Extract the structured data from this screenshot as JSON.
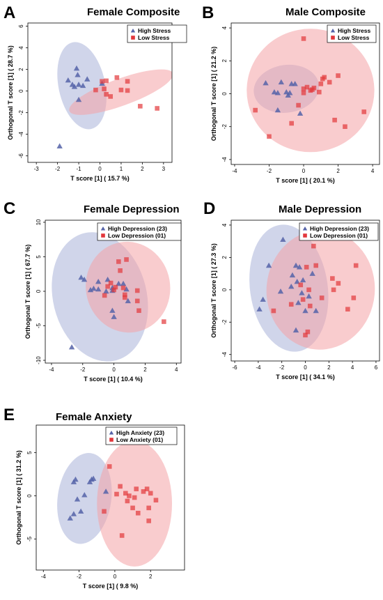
{
  "colors": {
    "high": "#5563a8",
    "low": "#e2373b",
    "high_ellipse": "#aab3d9",
    "low_ellipse": "#f4a3a6"
  },
  "chart_data": [
    {
      "letter": "A",
      "type": "scatter",
      "title": "Female Composite",
      "xlabel": "T score [1] ( 15.7 %)",
      "ylabel": "Orthogonal T score [1] ( 28.7 %)",
      "xlim": [
        -3.4,
        3.4
      ],
      "ylim": [
        -6.6,
        6.3
      ],
      "xticks": [
        -3,
        -2,
        -1,
        0,
        1,
        2,
        3
      ],
      "yticks": [
        -6,
        -4,
        -2,
        0,
        2,
        4,
        6
      ],
      "legend_position": "top-right",
      "series": [
        {
          "name": "High Stress",
          "group": "high",
          "points": [
            [
              -1.9,
              -5.1
            ],
            [
              -1.5,
              1.0
            ],
            [
              -1.3,
              0.6
            ],
            [
              -1.2,
              0.4
            ],
            [
              -1.1,
              2.1
            ],
            [
              -1.05,
              1.5
            ],
            [
              -1.0,
              0.6
            ],
            [
              -1.0,
              -0.8
            ],
            [
              -0.8,
              0.5
            ],
            [
              -0.6,
              1.1
            ],
            [
              0.1,
              0.7
            ]
          ]
        },
        {
          "name": "Low Stress",
          "group": "low",
          "points": [
            [
              -0.2,
              0.1
            ],
            [
              0.1,
              0.9
            ],
            [
              0.2,
              0.2
            ],
            [
              0.3,
              -0.3
            ],
            [
              0.3,
              0.95
            ],
            [
              0.5,
              -0.5
            ],
            [
              0.8,
              1.25
            ],
            [
              1.0,
              0.1
            ],
            [
              1.3,
              0.9
            ],
            [
              1.3,
              0.05
            ],
            [
              1.9,
              -1.4
            ],
            [
              2.7,
              -1.6
            ]
          ]
        }
      ],
      "ellipses": [
        {
          "group": "high",
          "cx": -0.85,
          "cy": 0.5,
          "rx": 1.1,
          "ry": 4.1,
          "angle": -12
        },
        {
          "group": "low",
          "cx": 1.0,
          "cy": -0.1,
          "rx": 2.6,
          "ry": 1.25,
          "angle": -20
        }
      ]
    },
    {
      "letter": "B",
      "type": "scatter",
      "title": "Male Composite",
      "xlabel": "T score [1] ( 20.1 %)",
      "ylabel": "Orthogonal T score [1] ( 21.2 %)",
      "xlim": [
        -4.2,
        4.4
      ],
      "ylim": [
        -4.3,
        4.3
      ],
      "xticks": [
        -4,
        -2,
        0,
        2,
        4
      ],
      "yticks": [
        -4,
        -2,
        0,
        2,
        4
      ],
      "legend_position": "top-right",
      "series": [
        {
          "name": "High Stress",
          "group": "high",
          "points": [
            [
              -2.2,
              0.65
            ],
            [
              -1.7,
              0.1
            ],
            [
              -1.5,
              0.05
            ],
            [
              -1.3,
              0.7
            ],
            [
              -1.0,
              0.1
            ],
            [
              -0.9,
              -0.1
            ],
            [
              -0.8,
              0.05
            ],
            [
              -0.7,
              0.6
            ],
            [
              -0.5,
              0.6
            ],
            [
              -1.5,
              -1.0
            ],
            [
              -0.2,
              -1.2
            ]
          ]
        },
        {
          "name": "Low Stress",
          "group": "low",
          "points": [
            [
              0.0,
              3.35
            ],
            [
              -2.8,
              -1.0
            ],
            [
              -2.0,
              -2.6
            ],
            [
              -0.7,
              -1.8
            ],
            [
              -0.3,
              -0.7
            ],
            [
              0.0,
              0.3
            ],
            [
              0.0,
              0.05
            ],
            [
              0.2,
              0.4
            ],
            [
              0.4,
              0.2
            ],
            [
              0.6,
              0.35
            ],
            [
              0.9,
              0.1
            ],
            [
              1.0,
              0.6
            ],
            [
              1.1,
              0.9
            ],
            [
              1.2,
              1.0
            ],
            [
              1.5,
              0.7
            ],
            [
              2.0,
              1.1
            ],
            [
              1.8,
              -1.6
            ],
            [
              2.4,
              -2.0
            ],
            [
              3.5,
              -1.1
            ],
            [
              0.5,
              0.25
            ]
          ]
        }
      ],
      "ellipses": [
        {
          "group": "high",
          "cx": -1.0,
          "cy": 0.3,
          "rx": 1.9,
          "ry": 1.45,
          "angle": -8
        },
        {
          "group": "low",
          "cx": 0.4,
          "cy": 0.2,
          "rx": 3.7,
          "ry": 3.75,
          "angle": 0
        }
      ]
    },
    {
      "letter": "C",
      "type": "scatter",
      "title": "Female Depression",
      "xlabel": "T score [1] ( 10.4 %)",
      "ylabel": "Orthogonal T score [1] ( 67.7 %)",
      "xlim": [
        -4.4,
        4.3
      ],
      "ylim": [
        -10.4,
        10.3
      ],
      "xticks": [
        -4,
        -2,
        0,
        2,
        4
      ],
      "yticks": [
        -10,
        -5,
        0,
        5,
        10
      ],
      "legend_position": "top-right",
      "series": [
        {
          "name": "High Depression (23)",
          "group": "high",
          "points": [
            [
              -2.7,
              -8.1
            ],
            [
              -2.1,
              2.0
            ],
            [
              -1.9,
              1.7
            ],
            [
              -1.5,
              0.2
            ],
            [
              -1.0,
              0.3
            ],
            [
              -1.0,
              1.4
            ],
            [
              -0.4,
              1.7
            ],
            [
              -0.1,
              0.5
            ],
            [
              -0.1,
              -2.8
            ],
            [
              0.0,
              -3.7
            ],
            [
              0.3,
              1.1
            ],
            [
              0.6,
              1.1
            ],
            [
              0.8,
              0.3
            ],
            [
              0.9,
              -1.4
            ],
            [
              -0.5,
              0.0
            ],
            [
              -1.3,
              0.4
            ],
            [
              -0.1,
              0.1
            ]
          ]
        },
        {
          "name": "Low Depression (01)",
          "group": "low",
          "points": [
            [
              -0.6,
              -0.6
            ],
            [
              -0.4,
              0.7
            ],
            [
              -0.2,
              1.2
            ],
            [
              0.0,
              0.2
            ],
            [
              0.1,
              0.6
            ],
            [
              0.3,
              4.3
            ],
            [
              0.4,
              3.0
            ],
            [
              0.6,
              0.5
            ],
            [
              0.7,
              -0.5
            ],
            [
              0.7,
              -0.9
            ],
            [
              0.8,
              4.6
            ],
            [
              1.5,
              0.1
            ],
            [
              1.5,
              -1.4
            ],
            [
              1.6,
              -2.8
            ],
            [
              3.2,
              -4.4
            ]
          ]
        }
      ],
      "ellipses": [
        {
          "group": "high",
          "cx": -0.9,
          "cy": -0.8,
          "rx": 3.0,
          "ry": 9.5,
          "angle": -14
        },
        {
          "group": "low",
          "cx": 0.9,
          "cy": 0.6,
          "rx": 2.7,
          "ry": 6.6,
          "angle": -10
        }
      ]
    },
    {
      "letter": "D",
      "type": "scatter",
      "title": "Male Depression",
      "xlabel": "T score [1] ( 34.1 %)",
      "ylabel": "Orthogonal T score [1] ( 27.3 %)",
      "xlim": [
        -6.3,
        6.3
      ],
      "ylim": [
        -4.4,
        4.3
      ],
      "xticks": [
        -6,
        -4,
        -2,
        0,
        2,
        4,
        6
      ],
      "yticks": [
        -4,
        -2,
        0,
        2,
        4
      ],
      "legend_position": "top-right",
      "series": [
        {
          "name": "High Depression (23)",
          "group": "high",
          "points": [
            [
              -3.9,
              -1.2
            ],
            [
              -3.6,
              -0.6
            ],
            [
              -3.1,
              1.5
            ],
            [
              -2.1,
              -0.1
            ],
            [
              -1.9,
              3.1
            ],
            [
              -1.2,
              0.2
            ],
            [
              -1.1,
              0.9
            ],
            [
              -0.8,
              1.5
            ],
            [
              -0.7,
              0.5
            ],
            [
              -0.6,
              -0.8
            ],
            [
              -0.5,
              1.4
            ],
            [
              -0.3,
              -0.2
            ],
            [
              -0.2,
              0.6
            ],
            [
              0.0,
              -1.3
            ],
            [
              0.6,
              1.0
            ],
            [
              0.9,
              -1.3
            ],
            [
              -0.8,
              -2.5
            ],
            [
              0.3,
              -0.4
            ]
          ]
        },
        {
          "name": "Low Depression (01)",
          "group": "low",
          "points": [
            [
              -2.7,
              -1.3
            ],
            [
              -1.2,
              -0.9
            ],
            [
              -0.2,
              -0.6
            ],
            [
              0.0,
              -2.8
            ],
            [
              0.1,
              1.4
            ],
            [
              0.2,
              -2.6
            ],
            [
              0.3,
              0.0
            ],
            [
              0.4,
              -1.0
            ],
            [
              0.7,
              2.7
            ],
            [
              0.9,
              1.5
            ],
            [
              1.4,
              -0.5
            ],
            [
              2.3,
              0.7
            ],
            [
              2.4,
              0.0
            ],
            [
              2.8,
              0.4
            ],
            [
              3.6,
              -1.2
            ],
            [
              4.1,
              -0.5
            ],
            [
              4.3,
              1.5
            ],
            [
              -0.4,
              0.3
            ]
          ]
        }
      ],
      "ellipses": [
        {
          "group": "high",
          "cx": -1.4,
          "cy": 0.1,
          "rx": 3.3,
          "ry": 3.95,
          "angle": -8
        },
        {
          "group": "low",
          "cx": 1.3,
          "cy": 0.0,
          "rx": 4.6,
          "ry": 3.7,
          "angle": 5
        }
      ]
    },
    {
      "letter": "E",
      "type": "scatter",
      "title": "Female Anxiety",
      "xlabel": "T score [1] ( 9.8 %)",
      "ylabel": "Orthogonal T score [1] ( 31.2 %)",
      "xlim": [
        -4.4,
        3.9
      ],
      "ylim": [
        -8.6,
        8.2
      ],
      "xticks": [
        -4,
        -2,
        0,
        2
      ],
      "yticks": [
        -5,
        0,
        5
      ],
      "legend_position": "top-right",
      "series": [
        {
          "name": "High Anxiety (23)",
          "group": "high",
          "points": [
            [
              -2.5,
              -2.6
            ],
            [
              -2.3,
              -2.1
            ],
            [
              -2.3,
              1.6
            ],
            [
              -2.2,
              1.9
            ],
            [
              -2.1,
              -0.4
            ],
            [
              -1.9,
              -1.8
            ],
            [
              -1.7,
              0.1
            ],
            [
              -1.4,
              1.6
            ],
            [
              -1.3,
              1.9
            ],
            [
              -1.2,
              2.0
            ],
            [
              -0.5,
              0.5
            ]
          ]
        },
        {
          "name": "Low Anxiety (01)",
          "group": "low",
          "points": [
            [
              -0.6,
              -1.8
            ],
            [
              -0.3,
              3.4
            ],
            [
              0.1,
              0.2
            ],
            [
              0.3,
              1.1
            ],
            [
              0.4,
              -4.6
            ],
            [
              0.6,
              0.3
            ],
            [
              0.7,
              -0.6
            ],
            [
              1.0,
              -1.4
            ],
            [
              1.1,
              -0.2
            ],
            [
              1.2,
              0.8
            ],
            [
              1.3,
              -2.0
            ],
            [
              1.6,
              0.5
            ],
            [
              1.8,
              0.8
            ],
            [
              1.9,
              -1.4
            ],
            [
              1.9,
              -2.9
            ],
            [
              2.0,
              0.3
            ],
            [
              2.3,
              -0.5
            ],
            [
              0.8,
              0.0
            ]
          ]
        }
      ],
      "ellipses": [
        {
          "group": "high",
          "cx": -1.7,
          "cy": -0.3,
          "rx": 1.5,
          "ry": 5.3,
          "angle": 8
        },
        {
          "group": "low",
          "cx": 1.1,
          "cy": -0.9,
          "rx": 2.1,
          "ry": 7.3,
          "angle": 0
        }
      ]
    }
  ]
}
